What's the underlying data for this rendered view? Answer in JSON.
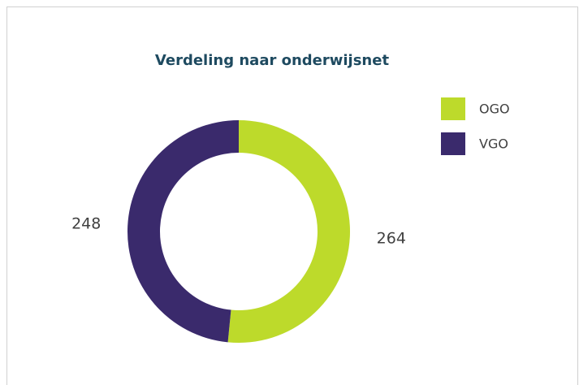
{
  "chart_data": {
    "type": "donut",
    "title": "Verdeling naar onderwijsnet",
    "categories": [
      "OGO",
      "VGO"
    ],
    "values": [
      264,
      248
    ],
    "colors": [
      "#bdda2b",
      "#3a2a6c"
    ],
    "legend": "top-right"
  }
}
